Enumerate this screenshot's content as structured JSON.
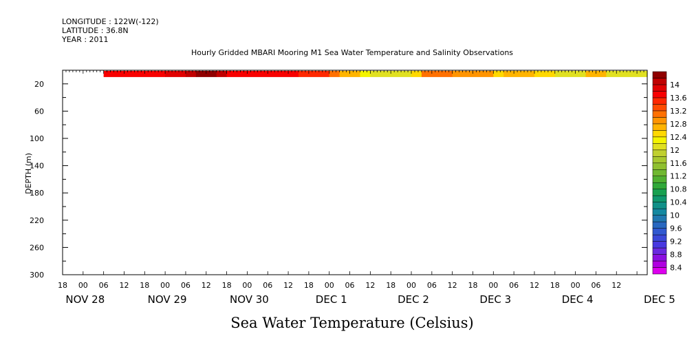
{
  "header": {
    "longitude": "LONGITUDE : 122W(-122)",
    "latitude": "LATITUDE : 36.8N",
    "year": "YEAR : 2011"
  },
  "chart_data": {
    "type": "heatmap",
    "title": "Hourly Gridded MBARI Mooring M1 Sea Water Temperature and Salinity Observations",
    "xlabel": "Sea Water Temperature (Celsius)",
    "ylabel": "DEPTH (m)",
    "x_hour_labels": [
      "18",
      "00",
      "06",
      "12",
      "18",
      "00",
      "06",
      "12",
      "18",
      "00",
      "06",
      "12",
      "18",
      "00",
      "06",
      "12",
      "18",
      "00",
      "06",
      "12",
      "18",
      "00",
      "06",
      "12",
      "18",
      "00",
      "06",
      "12"
    ],
    "x_date_labels": [
      {
        "text": "NOV 28",
        "hour": -6
      },
      {
        "text": "NOV 29",
        "hour": 18
      },
      {
        "text": "NOV 30",
        "hour": 42
      },
      {
        "text": "DEC  1",
        "hour": 66
      },
      {
        "text": "DEC  2",
        "hour": 90
      },
      {
        "text": "DEC  3",
        "hour": 114
      },
      {
        "text": "DEC  4",
        "hour": 138
      },
      {
        "text": "DEC  5",
        "hour": 162
      }
    ],
    "x_start": "NOV 28 12:00",
    "x_end": "DEC 5 15:00",
    "ylim": [
      300,
      0
    ],
    "y_ticks": [
      20,
      60,
      100,
      140,
      180,
      220,
      260,
      300
    ],
    "data_depth_range": [
      1,
      10
    ],
    "data_time_start": "NOV 29 00:00",
    "segments": [
      {
        "from": "NOV 29 00:00",
        "to": "NOV 29 18:00",
        "value": 13.6
      },
      {
        "from": "NOV 29 18:00",
        "to": "NOV 30 00:00",
        "value": 13.8
      },
      {
        "from": "NOV 30 00:00",
        "to": "NOV 30 03:00",
        "value": 14.1
      },
      {
        "from": "NOV 30 03:00",
        "to": "NOV 30 09:00",
        "value": 14.3
      },
      {
        "from": "NOV 30 09:00",
        "to": "NOV 30 12:00",
        "value": 14.0
      },
      {
        "from": "NOV 30 12:00",
        "to": "DEC 1 09:00",
        "value": 13.6
      },
      {
        "from": "DEC 1 09:00",
        "to": "DEC 1 18:00",
        "value": 13.4
      },
      {
        "from": "DEC 1 18:00",
        "to": "DEC 1 21:00",
        "value": 13.0
      },
      {
        "from": "DEC 1 21:00",
        "to": "DEC 2 03:00",
        "value": 12.6
      },
      {
        "from": "DEC 2 03:00",
        "to": "DEC 2 06:00",
        "value": 12.3
      },
      {
        "from": "DEC 2 06:00",
        "to": "DEC 2 18:00",
        "value": 12.1
      },
      {
        "from": "DEC 2 18:00",
        "to": "DEC 2 21:00",
        "value": 12.5
      },
      {
        "from": "DEC 2 21:00",
        "to": "DEC 3 06:00",
        "value": 13.0
      },
      {
        "from": "DEC 3 06:00",
        "to": "DEC 3 18:00",
        "value": 12.8
      },
      {
        "from": "DEC 3 18:00",
        "to": "DEC 3 21:00",
        "value": 12.4
      },
      {
        "from": "DEC 3 21:00",
        "to": "DEC 4 06:00",
        "value": 12.7
      },
      {
        "from": "DEC 4 06:00",
        "to": "DEC 4 12:00",
        "value": 12.4
      },
      {
        "from": "DEC 4 12:00",
        "to": "DEC 4 21:00",
        "value": 12.1
      },
      {
        "from": "DEC 4 21:00",
        "to": "DEC 5 03:00",
        "value": 12.6
      },
      {
        "from": "DEC 5 03:00",
        "to": "DEC 5 15:00",
        "value": 12.1
      }
    ],
    "colorbar": {
      "levels": [
        8.2,
        8.4,
        8.6,
        8.8,
        9.0,
        9.2,
        9.4,
        9.6,
        9.8,
        10.0,
        10.2,
        10.4,
        10.6,
        10.8,
        11.0,
        11.2,
        11.4,
        11.6,
        11.8,
        12.0,
        12.2,
        12.4,
        12.6,
        12.8,
        13.0,
        13.2,
        13.4,
        13.6,
        13.8,
        14.0,
        14.2,
        14.4
      ],
      "colors": [
        "#dd00ee",
        "#b000e0",
        "#8c10e0",
        "#6a2ae0",
        "#4838e0",
        "#3a48d8",
        "#3058d0",
        "#2868c0",
        "#2078b0",
        "#1488a0",
        "#109088",
        "#10986e",
        "#18a050",
        "#30a838",
        "#50b030",
        "#70b830",
        "#90c030",
        "#a8c830",
        "#c0d030",
        "#e0e020",
        "#f4f400",
        "#ffd800",
        "#ffb400",
        "#ff9400",
        "#ff7000",
        "#ff4c00",
        "#ff2800",
        "#f80000",
        "#e00000",
        "#c00000",
        "#900000"
      ],
      "labels": [
        "14",
        "13.6",
        "13.2",
        "12.8",
        "12.4",
        "12",
        "11.6",
        "11.2",
        "10.8",
        "10.4",
        "10",
        "9.6",
        "9.2",
        "8.8",
        "8.4"
      ],
      "label_values": [
        14.0,
        13.6,
        13.2,
        12.8,
        12.4,
        12.0,
        11.6,
        11.2,
        10.8,
        10.4,
        10.0,
        9.6,
        9.2,
        8.8,
        8.4
      ]
    }
  }
}
